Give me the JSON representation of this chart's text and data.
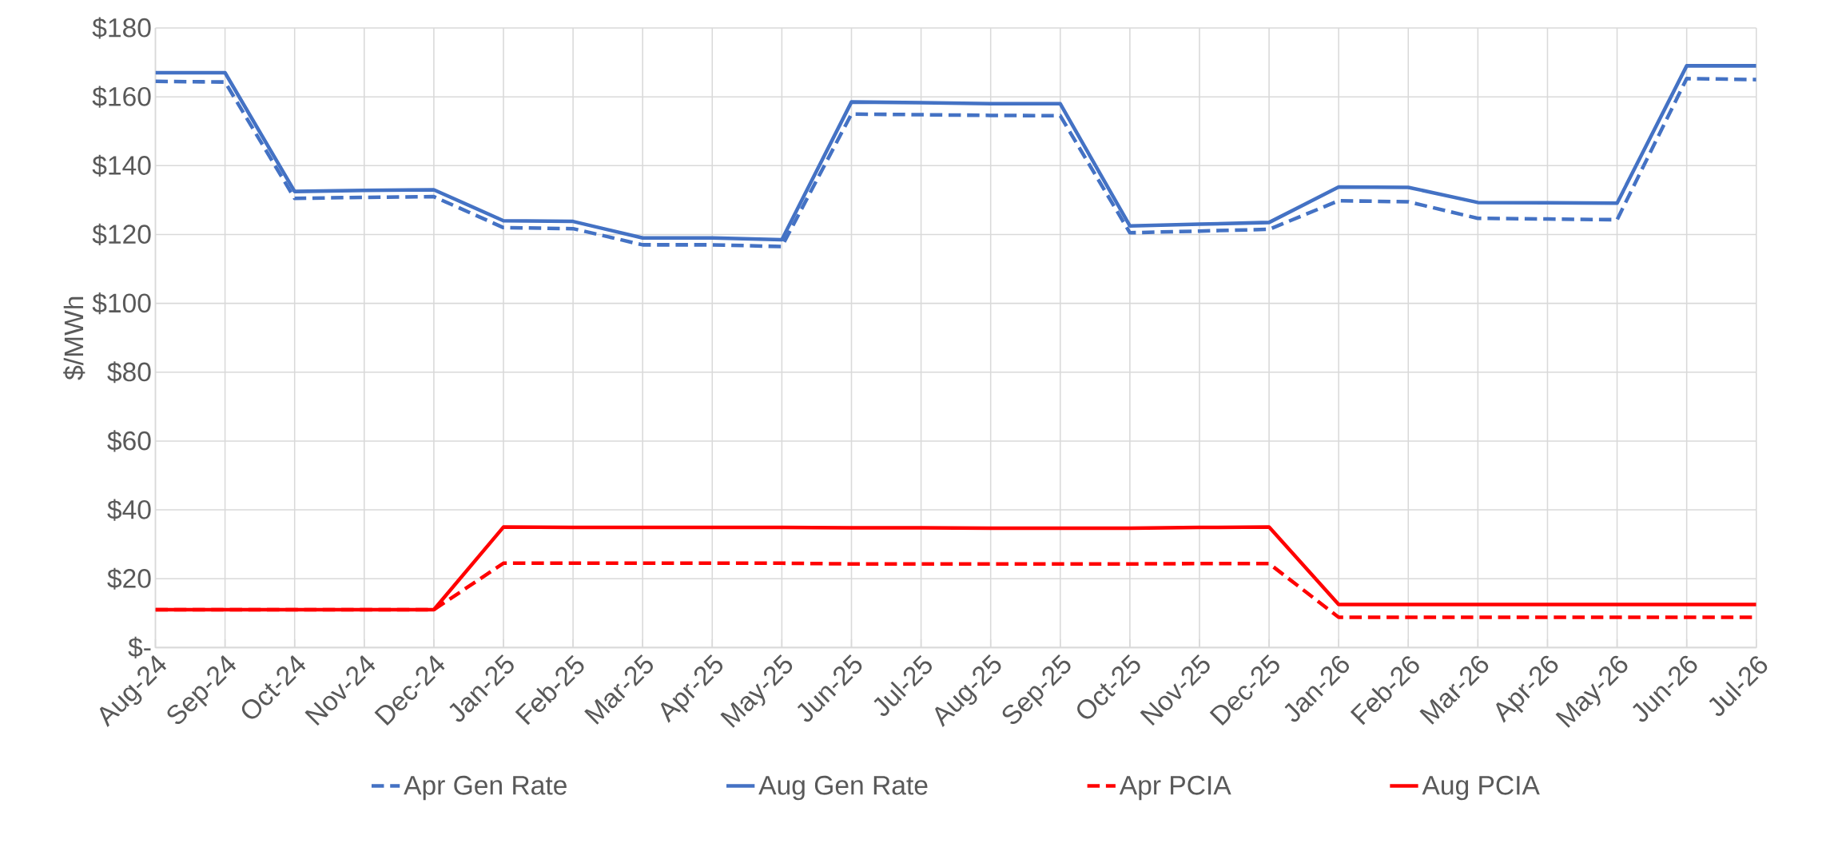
{
  "chart_data": {
    "type": "line",
    "ylabel": "$/MWh",
    "categories": [
      "Aug-24",
      "Sep-24",
      "Oct-24",
      "Nov-24",
      "Dec-24",
      "Jan-25",
      "Feb-25",
      "Mar-25",
      "Apr-25",
      "May-25",
      "Jun-25",
      "Jul-25",
      "Aug-25",
      "Sep-25",
      "Oct-25",
      "Nov-25",
      "Dec-25",
      "Jan-26",
      "Feb-26",
      "Mar-26",
      "Apr-26",
      "May-26",
      "Jun-26",
      "Jul-26"
    ],
    "series": [
      {
        "name": "Apr Gen Rate",
        "color": "#4472c4",
        "line_style": "dashed",
        "values": [
          164.5,
          164.3,
          130.5,
          130.8,
          131,
          122,
          121.7,
          117,
          117,
          116.5,
          155,
          154.8,
          154.6,
          154.5,
          120.5,
          121,
          121.5,
          129.8,
          129.5,
          124.7,
          124.5,
          124.3,
          165.3,
          165
        ]
      },
      {
        "name": "Aug Gen Rate",
        "color": "#4472c4",
        "line_style": "solid",
        "values": [
          167,
          167,
          132.5,
          132.8,
          133,
          124,
          123.8,
          119,
          119,
          118.5,
          158.5,
          158.3,
          158,
          158,
          122.5,
          123,
          123.5,
          133.8,
          133.7,
          129.3,
          129.2,
          129.1,
          169,
          169
        ]
      },
      {
        "name": "Apr PCIA",
        "color": "#ff0000",
        "line_style": "dashed",
        "values": [
          11,
          11,
          11,
          11,
          11,
          24.5,
          24.5,
          24.5,
          24.5,
          24.5,
          24.3,
          24.3,
          24.3,
          24.3,
          24.3,
          24.4,
          24.4,
          8.8,
          8.8,
          8.8,
          8.8,
          8.8,
          8.8,
          8.8
        ]
      },
      {
        "name": "Aug PCIA",
        "color": "#ff0000",
        "line_style": "solid",
        "values": [
          11,
          11,
          11,
          11,
          11,
          35,
          34.9,
          34.9,
          34.9,
          34.9,
          34.8,
          34.8,
          34.7,
          34.7,
          34.7,
          34.9,
          35,
          12.5,
          12.5,
          12.5,
          12.5,
          12.5,
          12.5,
          12.5
        ]
      }
    ],
    "ylim": [
      0,
      180
    ],
    "yticks": [
      {
        "value": 0,
        "label": "$-"
      },
      {
        "value": 20,
        "label": "$20"
      },
      {
        "value": 40,
        "label": "$40"
      },
      {
        "value": 60,
        "label": "$60"
      },
      {
        "value": 80,
        "label": "$80"
      },
      {
        "value": 100,
        "label": "$100"
      },
      {
        "value": 120,
        "label": "$120"
      },
      {
        "value": 140,
        "label": "$140"
      },
      {
        "value": 160,
        "label": "$160"
      },
      {
        "value": 180,
        "label": "$180"
      }
    ],
    "grid": true,
    "legend": "bottom",
    "marker": "none"
  }
}
